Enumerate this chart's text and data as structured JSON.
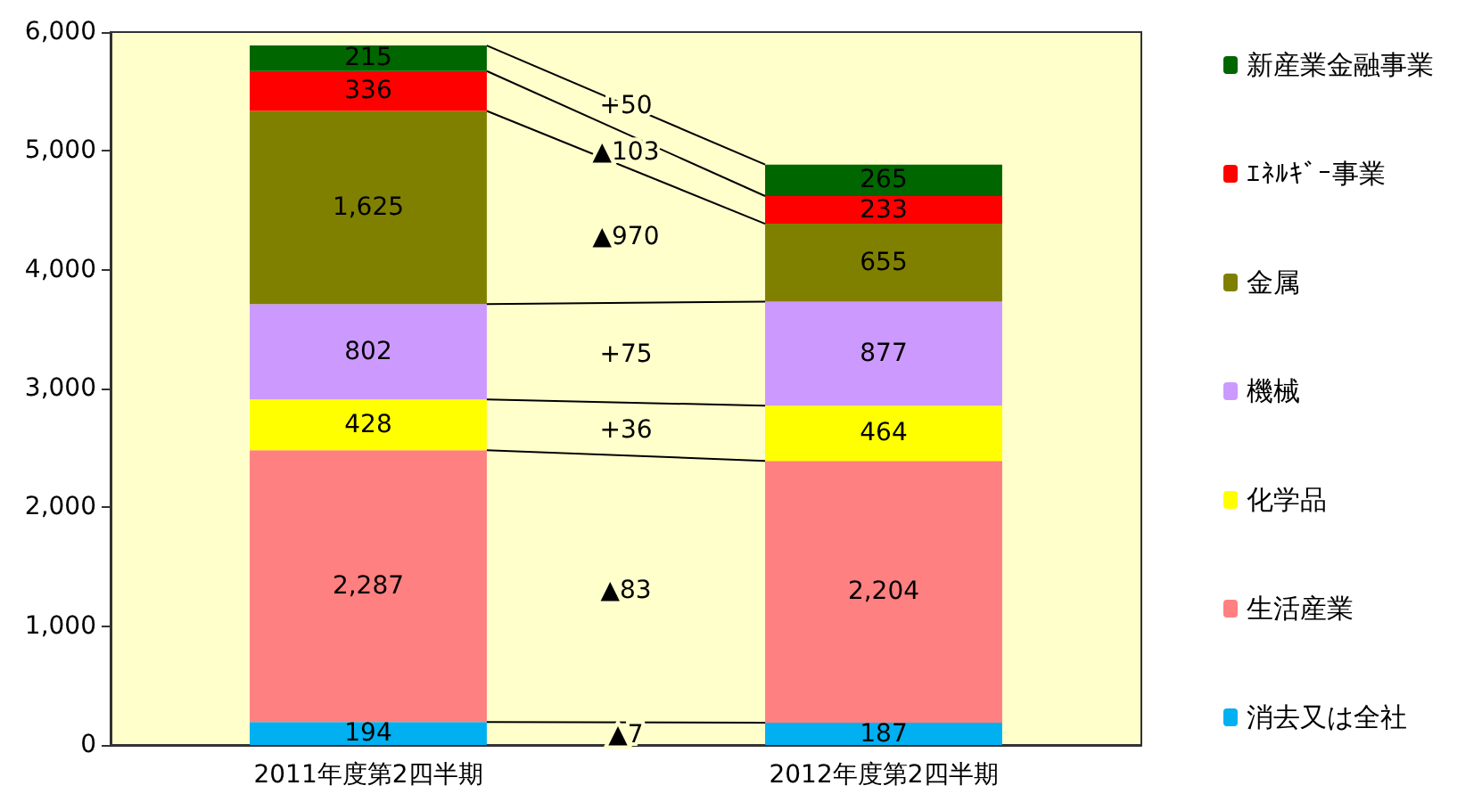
{
  "chart_data": {
    "type": "bar",
    "stacked": true,
    "categories": [
      "2011年度第2四半期",
      "2012年度第2四半期"
    ],
    "series": [
      {
        "name": "消去又は全社",
        "color": "#00b0f0",
        "values": [
          194,
          187
        ],
        "value_labels": [
          "194",
          "187"
        ]
      },
      {
        "name": "生活産業",
        "color": "#ff8080",
        "values": [
          2287,
          2204
        ],
        "value_labels": [
          "2,287",
          "2,204"
        ]
      },
      {
        "name": "化学品",
        "color": "#ffff00",
        "values": [
          428,
          464
        ],
        "value_labels": [
          "428",
          "464"
        ]
      },
      {
        "name": "機械",
        "color": "#cc99ff",
        "values": [
          802,
          877
        ],
        "value_labels": [
          "802",
          "877"
        ]
      },
      {
        "name": "金属",
        "color": "#808000",
        "values": [
          1625,
          655
        ],
        "value_labels": [
          "1,625",
          "655"
        ]
      },
      {
        "name": "ｴﾈﾙｷﾞｰ事業",
        "color": "#ff0000",
        "values": [
          336,
          233
        ],
        "value_labels": [
          "336",
          "233"
        ]
      },
      {
        "name": "新産業金融事業",
        "color": "#006600",
        "values": [
          215,
          265
        ],
        "value_labels": [
          "215",
          "265"
        ]
      }
    ],
    "annotations": [
      "▲7",
      "▲83",
      "+36",
      "+75",
      "▲970",
      "▲103",
      "+50"
    ],
    "ylim": [
      0,
      6000
    ],
    "yticks": [
      0,
      {
        "value": 1000,
        "label": "1,000"
      },
      {
        "value": 2000,
        "label": "2,000"
      },
      {
        "value": 3000,
        "label": "3,000"
      },
      {
        "value": 4000,
        "label": "4,000"
      },
      {
        "value": 5000,
        "label": "5,000"
      },
      {
        "value": 6000,
        "label": "6,000"
      }
    ],
    "legend": "right",
    "grid": false
  }
}
